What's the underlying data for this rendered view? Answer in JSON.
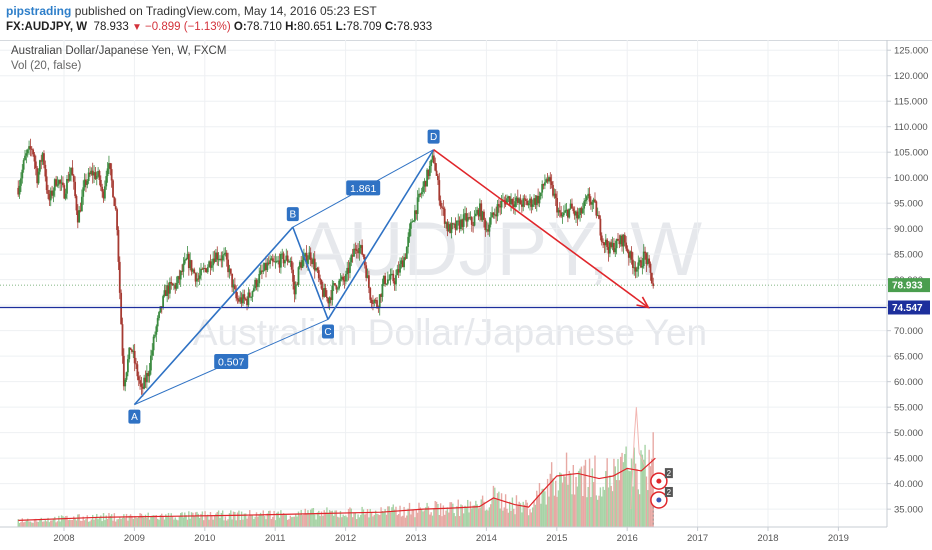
{
  "header": {
    "username": "pipstrading",
    "published_text": "published on TradingView.com, May 14, 2016 05:23 EST",
    "symbol": "FX:AUDJPY, W",
    "last": "78.933",
    "change": "−0.899 (−1.13%)",
    "o_label": "O:",
    "o_value": "78.710",
    "h_label": "H:",
    "h_value": "80.651",
    "l_label": "L:",
    "l_value": "78.709",
    "c_label": "C:",
    "c_value": "78.933",
    "down_glyph": "▼"
  },
  "legend": {
    "series_title": "Australian Dollar/Japanese Yen, W, FXCM",
    "volume_title": "Vol (20, false)"
  },
  "watermark": {
    "ticker": "AUDJPY, W",
    "description": "Australian Dollar/Japanese Yen"
  },
  "badges": {
    "last_price": "78.933",
    "level": "74.547"
  },
  "colors": {
    "up": "#3a8a3f",
    "down": "#a63a32",
    "pattern": "#2f72c4",
    "arrow": "#e0262b",
    "level": "#1d2f9c",
    "volume_ma": "#e0262b",
    "axis_text": "#555555"
  },
  "chart_data": {
    "type": "candlestick",
    "ylim": [
      31.5,
      127
    ],
    "y_ticks": [
      "125.000",
      "120.000",
      "115.000",
      "110.000",
      "105.000",
      "100.000",
      "95.000",
      "90.000",
      "85.000",
      "80.000",
      "75.000",
      "70.000",
      "65.000",
      "60.000",
      "55.000",
      "50.000",
      "45.000",
      "40.000",
      "35.000"
    ],
    "x_ticks": [
      "2008",
      "2009",
      "2010",
      "2011",
      "2012",
      "2013",
      "2014",
      "2015",
      "2016",
      "2017",
      "2018",
      "2019"
    ],
    "price_path": [
      [
        2007.35,
        98
      ],
      [
        2007.45,
        104
      ],
      [
        2007.55,
        106
      ],
      [
        2007.62,
        100
      ],
      [
        2007.7,
        105
      ],
      [
        2007.78,
        95
      ],
      [
        2007.9,
        100
      ],
      [
        2008.0,
        97
      ],
      [
        2008.1,
        102
      ],
      [
        2008.2,
        92
      ],
      [
        2008.3,
        99
      ],
      [
        2008.4,
        101
      ],
      [
        2008.5,
        100
      ],
      [
        2008.55,
        96
      ],
      [
        2008.62,
        103
      ],
      [
        2008.68,
        99
      ],
      [
        2008.75,
        92
      ],
      [
        2008.8,
        75
      ],
      [
        2008.85,
        60
      ],
      [
        2008.95,
        67
      ],
      [
        2009.1,
        58
      ],
      [
        2009.2,
        62
      ],
      [
        2009.3,
        70
      ],
      [
        2009.45,
        78
      ],
      [
        2009.6,
        79
      ],
      [
        2009.75,
        84
      ],
      [
        2009.9,
        80
      ],
      [
        2010.0,
        82
      ],
      [
        2010.15,
        85
      ],
      [
        2010.3,
        84
      ],
      [
        2010.45,
        76
      ],
      [
        2010.6,
        76
      ],
      [
        2010.75,
        80
      ],
      [
        2010.9,
        83
      ],
      [
        2011.0,
        83
      ],
      [
        2011.1,
        84
      ],
      [
        2011.22,
        84
      ],
      [
        2011.27,
        77
      ],
      [
        2011.35,
        83
      ],
      [
        2011.5,
        85
      ],
      [
        2011.58,
        82
      ],
      [
        2011.65,
        78
      ],
      [
        2011.75,
        76
      ],
      [
        2011.85,
        79
      ],
      [
        2012.0,
        80
      ],
      [
        2012.15,
        87
      ],
      [
        2012.25,
        85
      ],
      [
        2012.35,
        77
      ],
      [
        2012.45,
        75
      ],
      [
        2012.55,
        80
      ],
      [
        2012.7,
        80
      ],
      [
        2012.85,
        85
      ],
      [
        2012.95,
        92
      ],
      [
        2013.1,
        98
      ],
      [
        2013.25,
        104
      ],
      [
        2013.35,
        95
      ],
      [
        2013.45,
        90
      ],
      [
        2013.55,
        90
      ],
      [
        2013.7,
        92
      ],
      [
        2013.8,
        91
      ],
      [
        2013.9,
        94
      ],
      [
        2014.0,
        90
      ],
      [
        2014.15,
        94
      ],
      [
        2014.3,
        96
      ],
      [
        2014.45,
        95
      ],
      [
        2014.6,
        95
      ],
      [
        2014.75,
        96
      ],
      [
        2014.85,
        100
      ],
      [
        2014.95,
        97
      ],
      [
        2015.05,
        92
      ],
      [
        2015.2,
        94
      ],
      [
        2015.3,
        92
      ],
      [
        2015.45,
        96
      ],
      [
        2015.55,
        94
      ],
      [
        2015.65,
        88
      ],
      [
        2015.75,
        86
      ],
      [
        2015.85,
        87
      ],
      [
        2015.95,
        88
      ],
      [
        2016.05,
        84
      ],
      [
        2016.15,
        82
      ],
      [
        2016.25,
        85
      ],
      [
        2016.37,
        79
      ]
    ],
    "volume_ma_path": [
      [
        2007.35,
        32.8
      ],
      [
        2008.5,
        33.4
      ],
      [
        2009.5,
        33.6
      ],
      [
        2010.5,
        33.8
      ],
      [
        2011.5,
        34.1
      ],
      [
        2012.5,
        34.4
      ],
      [
        2013.1,
        35.0
      ],
      [
        2013.5,
        35.2
      ],
      [
        2013.9,
        35.5
      ],
      [
        2014.1,
        37.2
      ],
      [
        2014.4,
        35.9
      ],
      [
        2014.6,
        35.4
      ],
      [
        2014.8,
        38.5
      ],
      [
        2015.0,
        41.5
      ],
      [
        2015.3,
        42.0
      ],
      [
        2015.6,
        41.0
      ],
      [
        2015.8,
        41.5
      ],
      [
        2016.0,
        43.0
      ],
      [
        2016.2,
        42.5
      ],
      [
        2016.4,
        45.0
      ]
    ],
    "volume_spike_path": [
      [
        2016.05,
        35
      ],
      [
        2016.1,
        49
      ],
      [
        2016.13,
        55
      ],
      [
        2016.17,
        46
      ],
      [
        2016.25,
        43.5
      ]
    ],
    "harmonic_points": [
      {
        "label": "A",
        "x": 2009.0,
        "y": 55.5
      },
      {
        "label": "B",
        "x": 2011.25,
        "y": 90.3
      },
      {
        "label": "C",
        "x": 2011.75,
        "y": 72.2
      },
      {
        "label": "D",
        "x": 2013.25,
        "y": 105.5
      }
    ],
    "ratios": [
      {
        "label": "1.861",
        "from": "B",
        "to": "D"
      },
      {
        "label": "0.507",
        "from": "A",
        "to": "C"
      }
    ],
    "arrow": {
      "from": [
        2013.25,
        105.5
      ],
      "to": [
        2016.3,
        74.547
      ]
    },
    "horizontal_levels": [
      74.547,
      78.933
    ],
    "event_markers": [
      {
        "label": "2",
        "x": 2016.45,
        "y": 40.5
      },
      {
        "label": "2",
        "x": 2016.45,
        "y": 36.8
      }
    ]
  }
}
